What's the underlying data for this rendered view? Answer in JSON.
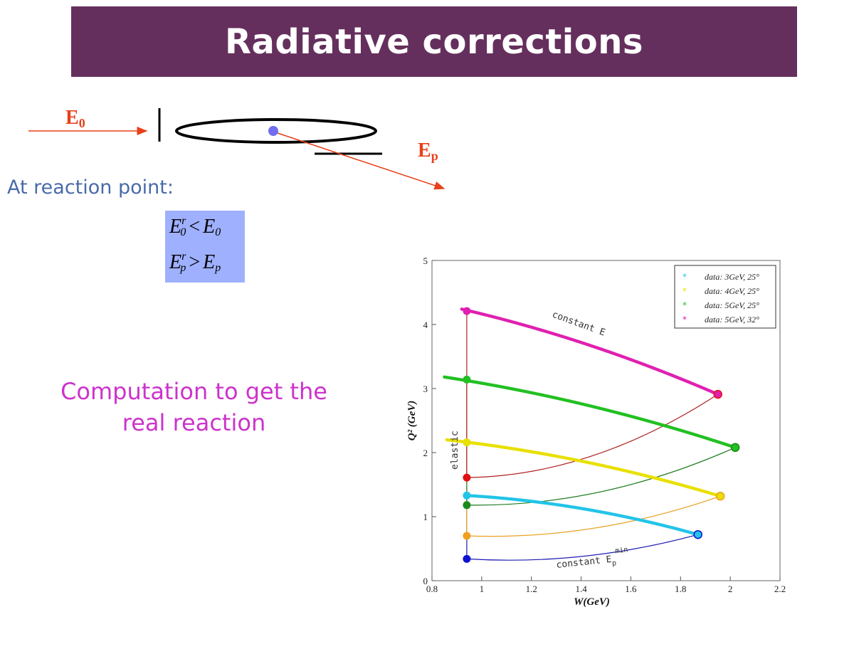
{
  "slide": {
    "title": "Radiative corrections",
    "label_e0_main": "E",
    "label_e0_sub": "0",
    "label_ep_main": "E",
    "label_ep_sub": "p",
    "reaction_text": "At reaction point:",
    "formula1": {
      "lhs": "E",
      "lhs_sup": "r",
      "lhs_sub": "0",
      "op": "<",
      "rhs": "E",
      "rhs_sub": "0"
    },
    "formula2": {
      "lhs": "E",
      "lhs_sup": "r",
      "lhs_sub": "p",
      "op": ">",
      "rhs": "E",
      "rhs_sub": "p"
    },
    "computation_line1": "Computation to get the",
    "computation_line2": "real reaction",
    "colors": {
      "title_bg": "#652f5d",
      "arrow": "#e8401a",
      "formula_bg": "#9fb0ff",
      "text_blue": "#4a6aa8",
      "computation_text": "#cc33cc",
      "reaction_dot": "#6f6ff0"
    }
  },
  "chart_data": {
    "type": "scatter",
    "xlabel": "W(GeV)",
    "ylabel": "Q² (GeV)",
    "xlim": [
      0.8,
      2.2
    ],
    "ylim": [
      0,
      5
    ],
    "xticks": [
      0.8,
      1,
      1.2,
      1.4,
      1.6,
      1.8,
      2,
      2.2
    ],
    "yticks": [
      0,
      1,
      2,
      3,
      4,
      5
    ],
    "grid": false,
    "legend_position": "top-right",
    "annotations": {
      "constant_e": "constant E",
      "elastic": "elastic",
      "constant_ep_text": "constant E",
      "constant_ep_sub": "p",
      "constant_ep_sup": "min"
    },
    "series": [
      {
        "name": "data: 3GeV, 25°",
        "color": "#22c4e8",
        "x": [
          0.94,
          1.87
        ],
        "y": [
          1.33,
          0.72
        ],
        "start": [
          0.94,
          1.33
        ]
      },
      {
        "name": "data: 4GeV, 25°",
        "color": "#e8e000",
        "x": [
          0.86,
          1.96
        ],
        "y": [
          2.2,
          1.32
        ],
        "start": [
          0.94,
          2.16
        ]
      },
      {
        "name": "data: 5GeV, 25°",
        "color": "#22c022",
        "x": [
          0.85,
          2.02
        ],
        "y": [
          3.18,
          2.08
        ],
        "start": [
          0.94,
          3.14
        ]
      },
      {
        "name": "data: 5GeV, 32°",
        "color": "#e020b0",
        "x": [
          0.92,
          1.95
        ],
        "y": [
          4.24,
          2.91
        ],
        "start": [
          0.94,
          4.21
        ]
      }
    ],
    "boundary_lines": [
      {
        "color": "#1a1ab0",
        "marker_color": "#1010d0",
        "start": [
          0.94,
          0.34
        ],
        "end": [
          1.87,
          0.72
        ],
        "elastic_y": 1.33
      },
      {
        "color": "#e8a020",
        "marker_color": "#f0a020",
        "start": [
          0.94,
          0.7
        ],
        "end": [
          1.96,
          1.32
        ],
        "elastic_y": 2.16
      },
      {
        "color": "#1a7a1a",
        "marker_color": "#1a8a1a",
        "start": [
          0.94,
          1.18
        ],
        "end": [
          2.02,
          2.08
        ],
        "elastic_y": 3.14
      },
      {
        "color": "#b02020",
        "marker_color": "#e01010",
        "start": [
          0.94,
          1.61
        ],
        "end": [
          1.95,
          2.91
        ],
        "elastic_y": 4.21
      }
    ]
  }
}
